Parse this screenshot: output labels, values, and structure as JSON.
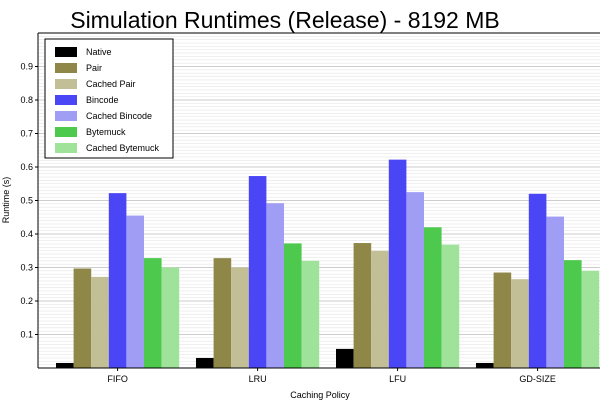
{
  "chart_data": {
    "type": "bar",
    "title": "Simulation Runtimes (Release) - 8192 MB",
    "xlabel": "Caching Policy",
    "ylabel": "Runtime (s)",
    "ylim": [
      0,
      1.0
    ],
    "yticks": [
      0.1,
      0.2,
      0.3,
      0.4,
      0.5,
      0.6,
      0.7,
      0.8,
      0.9
    ],
    "grid": true,
    "legend_position": "top-left",
    "categories": [
      "FIFO",
      "LRU",
      "LFU",
      "GD-SIZE"
    ],
    "series": [
      {
        "name": "Native",
        "color": "#000000",
        "values": [
          0.015,
          0.03,
          0.057,
          0.015
        ]
      },
      {
        "name": "Pair",
        "color": "#8e8748",
        "values": [
          0.297,
          0.328,
          0.373,
          0.285
        ]
      },
      {
        "name": "Cached Pair",
        "color": "#c2bf97",
        "values": [
          0.272,
          0.3,
          0.35,
          0.265
        ]
      },
      {
        "name": "Bincode",
        "color": "#4a45f5",
        "values": [
          0.522,
          0.573,
          0.622,
          0.52
        ]
      },
      {
        "name": "Cached Bincode",
        "color": "#a09df5",
        "values": [
          0.455,
          0.492,
          0.525,
          0.452
        ]
      },
      {
        "name": "Bytemuck",
        "color": "#4dca4d",
        "values": [
          0.328,
          0.372,
          0.42,
          0.322
        ]
      },
      {
        "name": "Cached Bytemuck",
        "color": "#9fe39b",
        "values": [
          0.3,
          0.32,
          0.368,
          0.29
        ]
      }
    ]
  }
}
